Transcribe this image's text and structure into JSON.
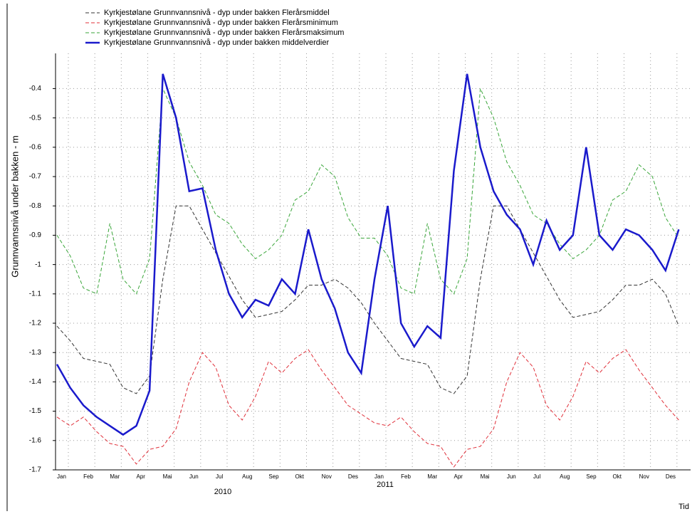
{
  "chart_data": {
    "type": "line",
    "ylabel": "Grunnvannsnivå under bakken - m",
    "xlabel": "Tid",
    "x_group_labels": [
      "2010",
      "2011"
    ],
    "categories": [
      "Jan",
      null,
      "Feb",
      null,
      "Mar",
      null,
      "Apr",
      null,
      "Mai",
      null,
      "Jun",
      null,
      "Jul",
      null,
      "Aug",
      null,
      "Sep",
      null,
      "Okt",
      null,
      "Nov",
      null,
      "Des",
      null,
      "Jan",
      null,
      "Feb",
      null,
      "Mar",
      null,
      "Apr",
      null,
      "Mai",
      null,
      "Jun",
      null,
      "Jul",
      null,
      "Aug",
      null,
      "Sep",
      null,
      "Okt",
      null,
      "Nov",
      null,
      "Des",
      null
    ],
    "ylim": [
      -1.7,
      -0.28
    ],
    "yticks": [
      -1.7,
      -1.6,
      -1.5,
      -1.4,
      -1.3,
      -1.2,
      -1.1,
      -1,
      -0.9,
      -0.8,
      -0.7,
      -0.6,
      -0.5,
      -0.4
    ],
    "grid": true,
    "series": [
      {
        "name": "Kyrkjestølane Grunnvannsnivå - dyp under bakken Flerårsmiddel",
        "color": "#333333",
        "dashed": true,
        "values": [
          -1.21,
          -1.26,
          -1.32,
          -1.33,
          -1.34,
          -1.42,
          -1.44,
          -1.38,
          -1.05,
          -0.8,
          -0.8,
          -0.88,
          -0.96,
          -1.04,
          -1.12,
          -1.18,
          -1.17,
          -1.16,
          -1.12,
          -1.07,
          -1.07,
          -1.05,
          -1.08,
          -1.13,
          -1.2,
          -1.26,
          -1.32,
          -1.33,
          -1.34,
          -1.42,
          -1.44,
          -1.38,
          -1.05,
          -0.8,
          -0.8,
          -0.88,
          -0.96,
          -1.04,
          -1.12,
          -1.18,
          -1.17,
          -1.16,
          -1.12,
          -1.07,
          -1.07,
          -1.05,
          -1.1,
          -1.21
        ]
      },
      {
        "name": "Kyrkjestølane Grunnvannsnivå - dyp under bakken Flerårsminimum",
        "color": "#e0303a",
        "dashed": true,
        "values": [
          -1.52,
          -1.55,
          -1.52,
          -1.57,
          -1.61,
          -1.62,
          -1.68,
          -1.63,
          -1.62,
          -1.56,
          -1.4,
          -1.3,
          -1.35,
          -1.48,
          -1.53,
          -1.45,
          -1.33,
          -1.37,
          -1.32,
          -1.29,
          -1.36,
          -1.42,
          -1.48,
          -1.51,
          -1.54,
          -1.55,
          -1.52,
          -1.57,
          -1.61,
          -1.62,
          -1.69,
          -1.63,
          -1.62,
          -1.56,
          -1.4,
          -1.3,
          -1.35,
          -1.48,
          -1.53,
          -1.45,
          -1.33,
          -1.37,
          -1.32,
          -1.29,
          -1.36,
          -1.42,
          -1.48,
          -1.53
        ]
      },
      {
        "name": "Kyrkjestølane Grunnvannsnivå - dyp under bakken Flerårsmaksimum",
        "color": "#3aa63a",
        "dashed": true,
        "values": [
          -0.9,
          -0.97,
          -1.08,
          -1.1,
          -0.86,
          -1.05,
          -1.1,
          -0.98,
          -0.4,
          -0.5,
          -0.65,
          -0.73,
          -0.83,
          -0.86,
          -0.93,
          -0.98,
          -0.95,
          -0.9,
          -0.78,
          -0.75,
          -0.66,
          -0.7,
          -0.84,
          -0.91,
          -0.91,
          -0.97,
          -1.08,
          -1.1,
          -0.86,
          -1.05,
          -1.1,
          -0.98,
          -0.4,
          -0.5,
          -0.65,
          -0.73,
          -0.83,
          -0.86,
          -0.93,
          -0.98,
          -0.95,
          -0.9,
          -0.78,
          -0.75,
          -0.66,
          -0.7,
          -0.84,
          -0.91
        ]
      },
      {
        "name": "Kyrkjestølane Grunnvannsnivå - dyp under bakken  middelverdier",
        "color": "#1a1acc",
        "dashed": false,
        "values": [
          -1.34,
          -1.42,
          -1.48,
          -1.52,
          -1.55,
          -1.58,
          -1.55,
          -1.43,
          -0.35,
          -0.5,
          -0.75,
          -0.74,
          -0.95,
          -1.1,
          -1.18,
          -1.12,
          -1.14,
          -1.05,
          -1.1,
          -0.88,
          -1.05,
          -1.15,
          -1.3,
          -1.37,
          -1.05,
          -0.8,
          -1.2,
          -1.28,
          -1.21,
          -1.25,
          -0.68,
          -0.35,
          -0.6,
          -0.75,
          -0.83,
          -0.88,
          -1,
          -0.85,
          -0.95,
          -0.9,
          -0.6,
          -0.9,
          -0.95,
          -0.88,
          -0.9,
          -0.95,
          -1.02,
          -0.88
        ]
      }
    ]
  }
}
